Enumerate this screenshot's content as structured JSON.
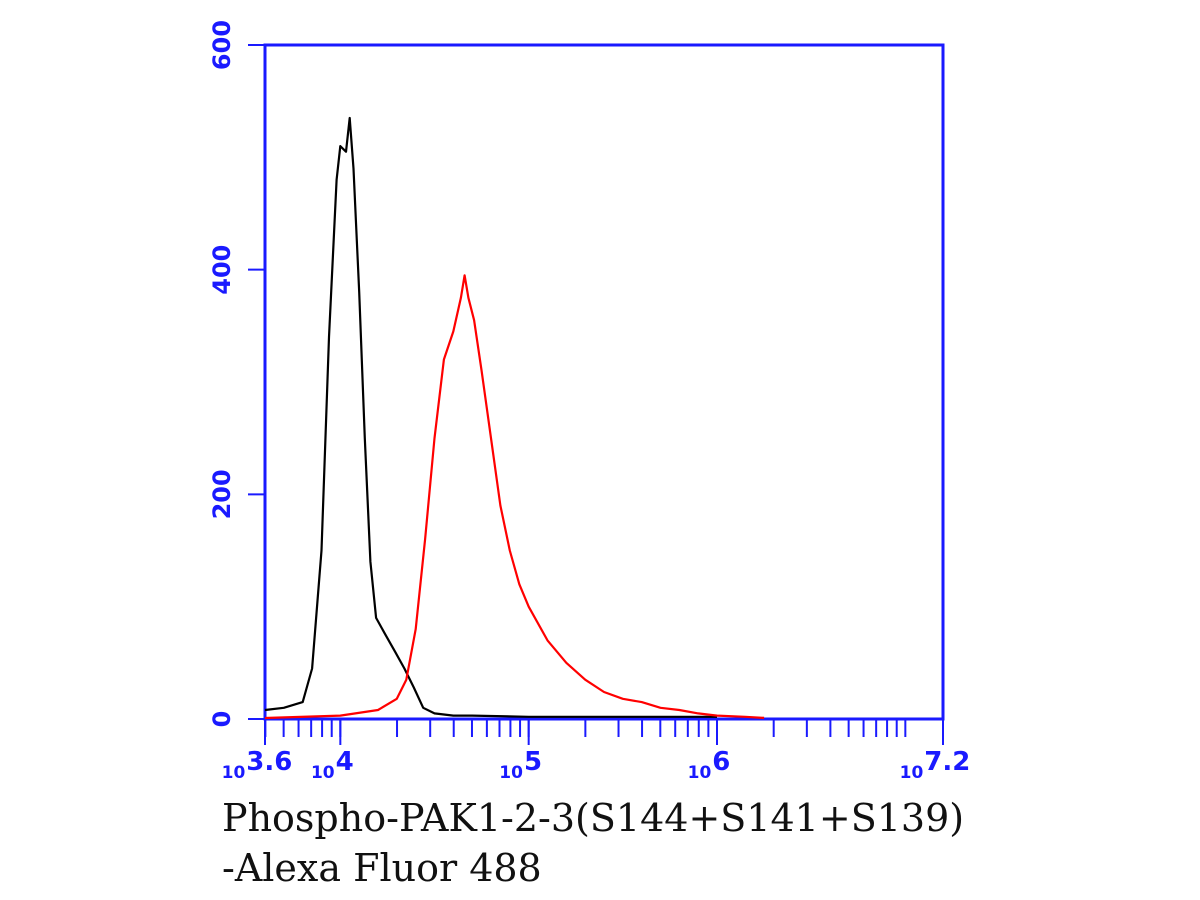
{
  "chart_data": {
    "type": "line",
    "title": "",
    "xlabel": [
      "Phospho-PAK1-2-3(S144+S141+S139)",
      "-Alexa Fluor 488"
    ],
    "ylabel": "",
    "x_scale": "log10",
    "xlim": [
      3981,
      15849000
    ],
    "ylim": [
      0,
      600
    ],
    "y_ticks": [
      {
        "value": 0,
        "label": "0"
      },
      {
        "value": 200,
        "label": "200"
      },
      {
        "value": 400,
        "label": "400"
      },
      {
        "value": 600,
        "label": "600"
      }
    ],
    "x_ticks": [
      {
        "value": 3981,
        "base": "10",
        "exp": "3.6"
      },
      {
        "value": 10000,
        "base": "10",
        "exp": "4"
      },
      {
        "value": 100000,
        "base": "10",
        "exp": "5"
      },
      {
        "value": 1000000,
        "base": "10",
        "exp": "6"
      },
      {
        "value": 15849000,
        "base": "10",
        "exp": "7.2"
      }
    ],
    "grid": false,
    "legend": "none",
    "series": [
      {
        "color": "#000000",
        "points": [
          [
            3981,
            8
          ],
          [
            5012,
            10
          ],
          [
            6310,
            15
          ],
          [
            7080,
            45
          ],
          [
            7943,
            150
          ],
          [
            8710,
            340
          ],
          [
            9550,
            480
          ],
          [
            10000,
            510
          ],
          [
            10720,
            505
          ],
          [
            11220,
            535
          ],
          [
            11750,
            490
          ],
          [
            12590,
            380
          ],
          [
            13490,
            250
          ],
          [
            14450,
            140
          ],
          [
            15490,
            90
          ],
          [
            17380,
            75
          ],
          [
            19500,
            60
          ],
          [
            21880,
            45
          ],
          [
            24550,
            28
          ],
          [
            27540,
            10
          ],
          [
            31620,
            5
          ],
          [
            39810,
            3
          ],
          [
            50120,
            3
          ],
          [
            100000,
            2
          ],
          [
            1000000,
            2
          ]
        ]
      },
      {
        "color": "#ff0000",
        "points": [
          [
            3981,
            0
          ],
          [
            10000,
            3
          ],
          [
            15850,
            8
          ],
          [
            19950,
            18
          ],
          [
            22390,
            35
          ],
          [
            25120,
            80
          ],
          [
            28180,
            160
          ],
          [
            31620,
            250
          ],
          [
            35480,
            320
          ],
          [
            39810,
            345
          ],
          [
            43650,
            375
          ],
          [
            45710,
            395
          ],
          [
            47860,
            375
          ],
          [
            51290,
            355
          ],
          [
            56230,
            310
          ],
          [
            63100,
            250
          ],
          [
            70790,
            190
          ],
          [
            79430,
            150
          ],
          [
            89130,
            120
          ],
          [
            100000,
            100
          ],
          [
            125900,
            70
          ],
          [
            158500,
            50
          ],
          [
            199500,
            35
          ],
          [
            251200,
            24
          ],
          [
            316200,
            18
          ],
          [
            398100,
            15
          ],
          [
            501200,
            10
          ],
          [
            631000,
            8
          ],
          [
            794300,
            5
          ],
          [
            1000000,
            3
          ],
          [
            1412500,
            2
          ],
          [
            1778300,
            1
          ]
        ]
      }
    ]
  }
}
